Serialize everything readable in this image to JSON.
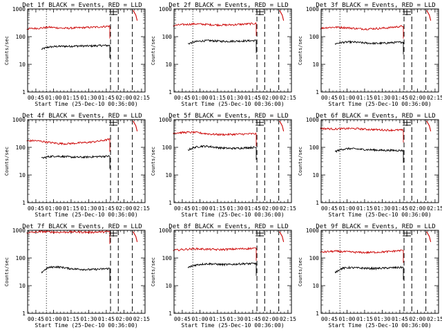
{
  "colors": {
    "events": "#000000",
    "lld": "#cc0000",
    "axis": "#000000",
    "background": "#ffffff"
  },
  "chart_data": [
    {
      "type": "line",
      "title": "Det 1f BLACK = Events, RED = LLD",
      "xlabel": "Start Time (25-Dec-10 00:36:00)",
      "ylabel": "Counts/sec",
      "xlim": [
        0.633,
        2.3
      ],
      "ylim": [
        1,
        1000
      ],
      "yscale": "log",
      "xticks": [
        "00:45",
        "01:00",
        "01:15",
        "01:30",
        "01:45",
        "02:00",
        "02:15"
      ],
      "yticks": [
        "1",
        "10",
        "100",
        "1000"
      ],
      "dotted_markers": [
        0.9
      ],
      "dashed_markers": [
        1.81,
        1.92,
        2.12
      ],
      "series": [
        {
          "name": "Events",
          "x_range": [
            0.83,
            1.8
          ],
          "values": [
            35,
            42,
            44,
            45,
            45,
            46,
            46,
            46,
            47,
            48,
            48
          ]
        },
        {
          "name": "LLD",
          "x_range": [
            0.62,
            1.8
          ],
          "values": [
            190,
            200,
            205,
            220,
            210,
            200,
            205,
            210,
            215,
            220,
            230,
            240
          ]
        }
      ]
    },
    {
      "type": "line",
      "title": "Det 2f BLACK = Events, RED = LLD",
      "xlabel": "Start Time (25-Dec-10 00:36:00)",
      "ylabel": "Counts/sec",
      "xlim": [
        0.633,
        2.3
      ],
      "ylim": [
        1,
        1000
      ],
      "yscale": "log",
      "xticks": [
        "00:45",
        "01:00",
        "01:15",
        "01:30",
        "01:45",
        "02:00",
        "02:15"
      ],
      "yticks": [
        "1",
        "10",
        "100",
        "1000"
      ],
      "dotted_markers": [
        0.9
      ],
      "dashed_markers": [
        1.81,
        1.92,
        2.12
      ],
      "series": [
        {
          "name": "Events",
          "x_range": [
            0.83,
            1.8
          ],
          "values": [
            55,
            65,
            70,
            72,
            70,
            68,
            68,
            69,
            70,
            71,
            72
          ]
        },
        {
          "name": "LLD",
          "x_range": [
            0.62,
            1.8
          ],
          "values": [
            250,
            270,
            280,
            290,
            280,
            270,
            265,
            265,
            270,
            280,
            290,
            300
          ]
        }
      ]
    },
    {
      "type": "line",
      "title": "Det 3f BLACK = Events, RED = LLD",
      "xlabel": "Start Time (25-Dec-10 00:36:00)",
      "ylabel": "Counts/sec",
      "xlim": [
        0.633,
        2.3
      ],
      "ylim": [
        1,
        1000
      ],
      "yscale": "log",
      "xticks": [
        "00:45",
        "01:00",
        "01:15",
        "01:30",
        "01:45",
        "02:00",
        "02:15"
      ],
      "yticks": [
        "1",
        "10",
        "100",
        "1000"
      ],
      "dotted_markers": [
        0.9
      ],
      "dashed_markers": [
        1.81,
        1.92,
        2.12
      ],
      "series": [
        {
          "name": "Events",
          "x_range": [
            0.83,
            1.8
          ],
          "values": [
            55,
            62,
            64,
            63,
            60,
            58,
            57,
            58,
            60,
            62,
            64
          ]
        },
        {
          "name": "LLD",
          "x_range": [
            0.62,
            1.8
          ],
          "values": [
            200,
            215,
            220,
            215,
            205,
            195,
            190,
            195,
            200,
            210,
            225,
            240
          ]
        }
      ]
    },
    {
      "type": "line",
      "title": "Det 4f BLACK = Events, RED = LLD",
      "xlabel": "Start Time (25-Dec-10 00:36:00)",
      "ylabel": "Counts/sec",
      "xlim": [
        0.633,
        2.3
      ],
      "ylim": [
        1,
        1000
      ],
      "yscale": "log",
      "xticks": [
        "00:45",
        "01:00",
        "01:15",
        "01:30",
        "01:45",
        "02:00",
        "02:15"
      ],
      "yticks": [
        "1",
        "10",
        "100",
        "1000"
      ],
      "dotted_markers": [
        0.9
      ],
      "dashed_markers": [
        1.81,
        1.92,
        2.12
      ],
      "series": [
        {
          "name": "Events",
          "x_range": [
            0.83,
            1.8
          ],
          "values": [
            40,
            46,
            48,
            47,
            45,
            44,
            44,
            45,
            46,
            47,
            48
          ]
        },
        {
          "name": "LLD",
          "x_range": [
            0.62,
            1.8
          ],
          "values": [
            170,
            175,
            165,
            150,
            140,
            135,
            138,
            145,
            150,
            160,
            175,
            195
          ]
        }
      ]
    },
    {
      "type": "line",
      "title": "Det 5f BLACK = Events, RED = LLD",
      "xlabel": "Start Time (25-Dec-10 00:36:00)",
      "ylabel": "Counts/sec",
      "xlim": [
        0.633,
        2.3
      ],
      "ylim": [
        1,
        1000
      ],
      "yscale": "log",
      "xticks": [
        "00:45",
        "01:00",
        "01:15",
        "01:30",
        "01:45",
        "02:00",
        "02:15"
      ],
      "yticks": [
        "1",
        "10",
        "100",
        "1000"
      ],
      "dotted_markers": [
        0.9
      ],
      "dashed_markers": [
        1.81,
        1.92,
        2.12
      ],
      "series": [
        {
          "name": "Events",
          "x_range": [
            0.83,
            1.8
          ],
          "values": [
            80,
            100,
            110,
            108,
            100,
            95,
            92,
            92,
            95,
            98,
            100
          ]
        },
        {
          "name": "LLD",
          "x_range": [
            0.62,
            1.8
          ],
          "values": [
            330,
            340,
            350,
            345,
            320,
            300,
            290,
            290,
            295,
            300,
            305,
            310
          ]
        }
      ]
    },
    {
      "type": "line",
      "title": "Det 6f BLACK = Events, RED = LLD",
      "xlabel": "Start Time (25-Dec-10 00:36:00)",
      "ylabel": "Counts/sec",
      "xlim": [
        0.633,
        2.3
      ],
      "ylim": [
        1,
        1000
      ],
      "yscale": "log",
      "xticks": [
        "00:45",
        "01:00",
        "01:15",
        "01:30",
        "01:45",
        "02:00",
        "02:15"
      ],
      "yticks": [
        "1",
        "10",
        "100",
        "1000"
      ],
      "dotted_markers": [
        0.9
      ],
      "dashed_markers": [
        1.81,
        1.92,
        2.12
      ],
      "series": [
        {
          "name": "Events",
          "x_range": [
            0.83,
            1.8
          ],
          "values": [
            70,
            85,
            90,
            88,
            84,
            82,
            80,
            78,
            78,
            77,
            77
          ]
        },
        {
          "name": "LLD",
          "x_range": [
            0.62,
            1.8
          ],
          "values": [
            480,
            470,
            460,
            470,
            480,
            470,
            450,
            440,
            430,
            420,
            420,
            420
          ]
        }
      ]
    },
    {
      "type": "line",
      "title": "Det 7f BLACK = Events, RED = LLD",
      "xlabel": "Start Time (25-Dec-10 00:36:00)",
      "ylabel": "Counts/sec",
      "xlim": [
        0.633,
        2.3
      ],
      "ylim": [
        1,
        1000
      ],
      "yscale": "log",
      "xticks": [
        "00:45",
        "01:00",
        "01:15",
        "01:30",
        "01:45",
        "02:00",
        "02:15"
      ],
      "yticks": [
        "1",
        "10",
        "100",
        "1000"
      ],
      "dotted_markers": [
        0.9
      ],
      "dashed_markers": [
        1.81,
        1.92,
        2.12
      ],
      "series": [
        {
          "name": "Events",
          "x_range": [
            0.83,
            1.8
          ],
          "values": [
            30,
            45,
            48,
            46,
            42,
            40,
            39,
            38,
            39,
            40,
            42
          ]
        },
        {
          "name": "LLD",
          "x_range": [
            0.62,
            1.8
          ],
          "values": [
            820,
            850,
            900,
            880,
            850,
            860,
            880,
            870,
            850,
            860,
            880,
            900
          ]
        }
      ]
    },
    {
      "type": "line",
      "title": "Det 8f BLACK = Events, RED = LLD",
      "xlabel": "Start Time (25-Dec-10 00:36:00)",
      "ylabel": "Counts/sec",
      "xlim": [
        0.633,
        2.3
      ],
      "ylim": [
        1,
        1000
      ],
      "yscale": "log",
      "xticks": [
        "00:45",
        "01:00",
        "01:15",
        "01:30",
        "01:45",
        "02:00",
        "02:15"
      ],
      "yticks": [
        "1",
        "10",
        "100",
        "1000"
      ],
      "dotted_markers": [
        0.9
      ],
      "dashed_markers": [
        1.81,
        1.92,
        2.12
      ],
      "series": [
        {
          "name": "Events",
          "x_range": [
            0.83,
            1.8
          ],
          "values": [
            45,
            55,
            60,
            62,
            60,
            58,
            58,
            60,
            62,
            62,
            64
          ]
        },
        {
          "name": "LLD",
          "x_range": [
            0.62,
            1.8
          ],
          "values": [
            190,
            200,
            210,
            215,
            210,
            205,
            200,
            205,
            210,
            215,
            220,
            225
          ]
        }
      ]
    },
    {
      "type": "line",
      "title": "Det 9f BLACK = Events, RED = LLD",
      "xlabel": "Start Time (25-Dec-10 00:36:00)",
      "ylabel": "Counts/sec",
      "xlim": [
        0.633,
        2.3
      ],
      "ylim": [
        1,
        1000
      ],
      "yscale": "log",
      "xticks": [
        "00:45",
        "01:00",
        "01:15",
        "01:30",
        "01:45",
        "02:00",
        "02:15"
      ],
      "yticks": [
        "1",
        "10",
        "100",
        "1000"
      ],
      "dotted_markers": [
        0.9
      ],
      "dashed_markers": [
        1.81,
        1.92,
        2.12
      ],
      "series": [
        {
          "name": "Events",
          "x_range": [
            0.83,
            1.8
          ],
          "values": [
            30,
            42,
            45,
            44,
            43,
            42,
            42,
            43,
            44,
            45,
            46
          ]
        },
        {
          "name": "LLD",
          "x_range": [
            0.62,
            1.8
          ],
          "values": [
            160,
            170,
            175,
            170,
            165,
            160,
            158,
            160,
            165,
            170,
            180,
            190
          ]
        }
      ]
    }
  ]
}
